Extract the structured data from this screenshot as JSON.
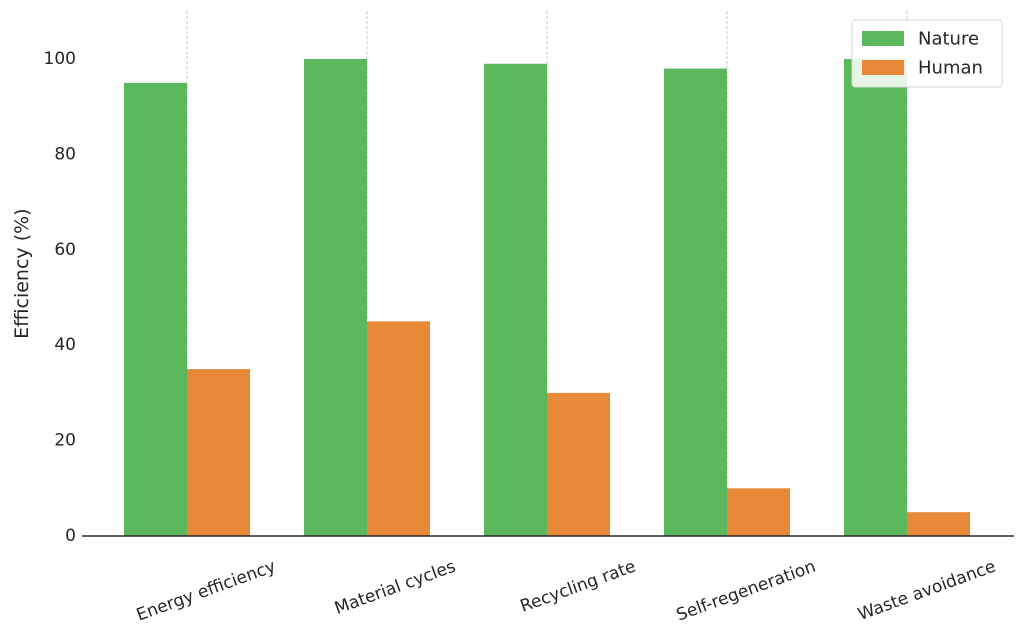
{
  "chart_data": {
    "type": "bar",
    "categories": [
      "Energy efficiency",
      "Material cycles",
      "Recycling rate",
      "Self-regeneration",
      "Waste avoidance"
    ],
    "series": [
      {
        "name": "Nature",
        "values": [
          95,
          100,
          99,
          98,
          100
        ],
        "color": "#5cb85c"
      },
      {
        "name": "Human",
        "values": [
          35,
          45,
          30,
          10,
          5
        ],
        "color": "#e8893a"
      }
    ],
    "ylabel": "Efficiency (%)",
    "xlabel": "",
    "ylim": [
      0,
      110
    ],
    "yticks": [
      0,
      20,
      40,
      60,
      80,
      100
    ],
    "grid": "vertical dashed at category centers",
    "legend": "top-right"
  }
}
